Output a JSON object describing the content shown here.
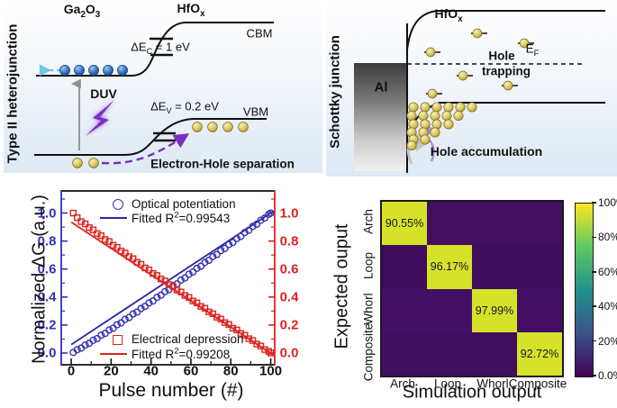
{
  "colors": {
    "blue_series": "#3232b4",
    "blue_fit": "#28289e",
    "red_series": "#dd2420",
    "axis_black": "#111111",
    "electron_fill": "#2e6fbe",
    "hole_fill": "#d9c35b",
    "duv_purple": "#7d2fc7",
    "cyan_arrow": "#70c7ec",
    "gray_arrow": "#8f8f8f",
    "heatmap_high": "#d6e22a",
    "heatmap_lows": [
      "#410e60",
      "#3e0d5c",
      "#430f64",
      "#400e5f"
    ],
    "viridis_stops": [
      "#440154",
      "#3b528b",
      "#21918c",
      "#5ec962",
      "#fde725"
    ]
  },
  "panels": {
    "heterojunction": {
      "side_label": "Type II heterojunction",
      "material_left": {
        "t1": "Ga",
        "s1": "2",
        "t2": "O",
        "s2": "3"
      },
      "material_right": {
        "t1": "HfO",
        "s1": "x"
      },
      "cbm": "CBM",
      "vbm": "VBM",
      "delta_ec": {
        "base": "ΔE",
        "sub": "C",
        "rest": " = 1 eV"
      },
      "delta_ev": {
        "base": "ΔE",
        "sub": "V",
        "rest": " = 0.2 eV"
      },
      "duv": "DUV",
      "separation": "Electron-Hole separation"
    },
    "schottky": {
      "side_label": "Schottky junction",
      "material": {
        "t1": "HfO",
        "s1": "x"
      },
      "metal": "Al",
      "fermi": {
        "base": "E",
        "sub": "F"
      },
      "trapping_line1": "Hole",
      "trapping_line2": "trapping",
      "accumulation": "Hole accumulation"
    }
  },
  "chart_data": [
    {
      "type": "scatter",
      "xlabel": "Pulse number (#)",
      "ylabel": "Normalized ΔG (a.u.)",
      "xlim": [
        -5,
        102
      ],
      "ylim": [
        -0.084,
        1.158
      ],
      "x_ticks": [
        0,
        20,
        40,
        60,
        80,
        100
      ],
      "x_minor_ticks": [
        10,
        30,
        50,
        70,
        90
      ],
      "y_ticks": [
        0.0,
        0.2,
        0.4,
        0.6,
        0.8,
        1.0
      ],
      "y_minor_ticks": [
        0.1,
        0.3,
        0.5,
        0.7,
        0.9,
        1.1
      ],
      "grid": false,
      "legend_position": "inside top-center and bottom-center",
      "series": [
        {
          "name": "Optical potentiation",
          "marker": "circle",
          "x": [
            1,
            3,
            5,
            7,
            9,
            11,
            13,
            15,
            17,
            19,
            21,
            23,
            25,
            27,
            29,
            31,
            33,
            35,
            37,
            39,
            41,
            43,
            45,
            47,
            49,
            51,
            53,
            55,
            57,
            59,
            61,
            63,
            65,
            67,
            69,
            71,
            73,
            75,
            77,
            79,
            81,
            83,
            85,
            87,
            89,
            91,
            93,
            95,
            97,
            99,
            100
          ],
          "y": [
            0.004,
            0.024,
            0.035,
            0.057,
            0.069,
            0.091,
            0.103,
            0.127,
            0.14,
            0.164,
            0.177,
            0.202,
            0.215,
            0.24,
            0.254,
            0.279,
            0.292,
            0.318,
            0.333,
            0.358,
            0.372,
            0.398,
            0.413,
            0.439,
            0.453,
            0.48,
            0.494,
            0.521,
            0.536,
            0.563,
            0.578,
            0.605,
            0.62,
            0.647,
            0.662,
            0.689,
            0.704,
            0.732,
            0.747,
            0.775,
            0.79,
            0.818,
            0.833,
            0.861,
            0.877,
            0.905,
            0.92,
            0.948,
            0.964,
            0.992,
            1.0
          ],
          "fit": {
            "pre": "Fitted R",
            "sup": "2",
            "post": "=0.99543",
            "x": [
              0,
              101
            ],
            "y": [
              0.06,
              1.01
            ]
          }
        },
        {
          "name": "Electrical depression",
          "marker": "square",
          "x": [
            1,
            3,
            5,
            7,
            9,
            11,
            13,
            15,
            17,
            19,
            21,
            23,
            25,
            27,
            29,
            31,
            33,
            35,
            37,
            39,
            41,
            43,
            45,
            47,
            49,
            51,
            53,
            55,
            57,
            59,
            61,
            63,
            65,
            67,
            69,
            71,
            73,
            75,
            77,
            79,
            81,
            83,
            85,
            87,
            89,
            91,
            93,
            95,
            97,
            99,
            100
          ],
          "y": [
            1.0,
            0.967,
            0.939,
            0.923,
            0.896,
            0.88,
            0.853,
            0.838,
            0.811,
            0.797,
            0.77,
            0.755,
            0.729,
            0.715,
            0.689,
            0.674,
            0.648,
            0.634,
            0.608,
            0.594,
            0.568,
            0.554,
            0.529,
            0.515,
            0.489,
            0.476,
            0.45,
            0.436,
            0.411,
            0.397,
            0.372,
            0.358,
            0.333,
            0.32,
            0.294,
            0.281,
            0.256,
            0.242,
            0.217,
            0.204,
            0.178,
            0.165,
            0.14,
            0.127,
            0.102,
            0.089,
            0.064,
            0.05,
            0.025,
            0.012,
            0.0
          ],
          "fit": {
            "pre": "Fitted R",
            "sup": "2",
            "post": "=0.99208",
            "x": [
              0,
              101
            ],
            "y": [
              0.935,
              -0.012
            ]
          }
        }
      ]
    },
    {
      "type": "heatmap",
      "xlabel": "Simulation output",
      "ylabel": "Expected ouput",
      "rows": [
        "Arch",
        "Loop",
        "Whorl",
        "Composite"
      ],
      "cols": [
        "Arch",
        "Loop",
        "Whorl",
        "Composite"
      ],
      "values": [
        [
          90.55,
          0,
          0,
          0
        ],
        [
          0,
          96.17,
          0,
          0
        ],
        [
          0,
          0,
          97.99,
          0
        ],
        [
          0,
          0,
          0,
          92.72
        ]
      ],
      "cell_labels": [
        [
          "90.55%",
          "",
          "",
          ""
        ],
        [
          "",
          "96.17%",
          "",
          ""
        ],
        [
          "",
          "",
          "97.99%",
          ""
        ],
        [
          "",
          "",
          "",
          "92.72%"
        ]
      ],
      "colorbar_ticks": [
        "100%",
        "80%",
        "60%",
        "40%",
        "20%",
        "0.0%"
      ],
      "colormap": "viridis"
    }
  ]
}
